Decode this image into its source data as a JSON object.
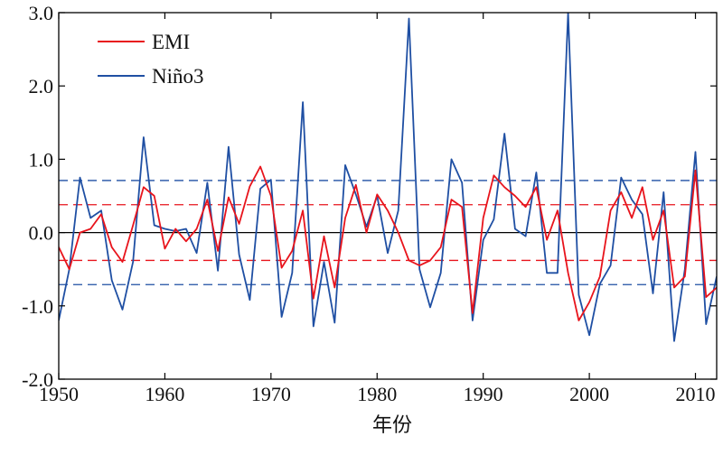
{
  "chart_data": {
    "type": "line",
    "xlabel": "年份",
    "ylabel": "",
    "xlim": [
      1950,
      2012
    ],
    "ylim": [
      -2.0,
      3.0
    ],
    "x_ticks": [
      1950,
      1960,
      1970,
      1980,
      1990,
      2000,
      2010
    ],
    "x_tick_labels": [
      "1950",
      "1960",
      "1970",
      "1980",
      "1990",
      "2000",
      "2010"
    ],
    "y_ticks": [
      -2,
      -1,
      0,
      1,
      2,
      3
    ],
    "y_tick_labels": [
      "-2.0",
      "-1.0",
      "0.0",
      "1.0",
      "2.0",
      "3.0"
    ],
    "legend_position": "top-left",
    "colors": {
      "EMI": "#e8141c",
      "Nino3": "#1f4fa3",
      "zero": "#000000"
    },
    "x": [
      1950,
      1951,
      1952,
      1953,
      1954,
      1955,
      1956,
      1957,
      1958,
      1959,
      1960,
      1961,
      1962,
      1963,
      1964,
      1965,
      1966,
      1967,
      1968,
      1969,
      1970,
      1971,
      1972,
      1973,
      1974,
      1975,
      1976,
      1977,
      1978,
      1979,
      1980,
      1981,
      1982,
      1983,
      1984,
      1985,
      1986,
      1987,
      1988,
      1989,
      1990,
      1991,
      1992,
      1993,
      1994,
      1995,
      1996,
      1997,
      1998,
      1999,
      2000,
      2001,
      2002,
      2003,
      2004,
      2005,
      2006,
      2007,
      2008,
      2009,
      2010,
      2011,
      2012
    ],
    "series": [
      {
        "name": "EMI",
        "values": [
          -0.2,
          -0.5,
          0.0,
          0.05,
          0.25,
          -0.2,
          -0.4,
          0.1,
          0.62,
          0.5,
          -0.22,
          0.05,
          -0.12,
          0.05,
          0.45,
          -0.25,
          0.48,
          0.12,
          0.63,
          0.9,
          0.5,
          -0.48,
          -0.25,
          0.3,
          -0.9,
          -0.05,
          -0.75,
          0.2,
          0.65,
          0.0,
          0.52,
          0.3,
          0.0,
          -0.38,
          -0.45,
          -0.38,
          -0.2,
          0.45,
          0.35,
          -1.1,
          0.2,
          0.78,
          0.62,
          0.5,
          0.35,
          0.62,
          -0.1,
          0.3,
          -0.55,
          -1.2,
          -0.95,
          -0.6,
          0.3,
          0.55,
          0.2,
          0.62,
          -0.1,
          0.3,
          -0.75,
          -0.6,
          0.85,
          -0.88,
          -0.75
        ]
      },
      {
        "name": "Niño3",
        "values": [
          -1.2,
          -0.5,
          0.75,
          0.2,
          0.3,
          -0.65,
          -1.05,
          -0.4,
          1.3,
          0.1,
          0.05,
          0.02,
          0.05,
          -0.28,
          0.68,
          -0.52,
          1.17,
          -0.3,
          -0.92,
          0.6,
          0.72,
          -1.15,
          -0.55,
          1.78,
          -1.28,
          -0.4,
          -1.23,
          0.92,
          0.52,
          0.08,
          0.5,
          -0.28,
          0.3,
          2.92,
          -0.5,
          -1.02,
          -0.55,
          1.0,
          0.68,
          -1.2,
          -0.1,
          0.18,
          1.35,
          0.05,
          -0.05,
          0.82,
          -0.55,
          -0.55,
          3.0,
          -0.85,
          -1.4,
          -0.7,
          -0.45,
          0.75,
          0.45,
          0.25,
          -0.83,
          0.55,
          -1.48,
          -0.5,
          1.1,
          -1.25,
          -0.6
        ]
      }
    ],
    "reference_lines": [
      {
        "series": "Niño3",
        "values": [
          0.71,
          -0.71
        ],
        "style": "dashed"
      },
      {
        "series": "EMI",
        "values": [
          0.38,
          -0.38
        ],
        "style": "dashed"
      }
    ]
  }
}
